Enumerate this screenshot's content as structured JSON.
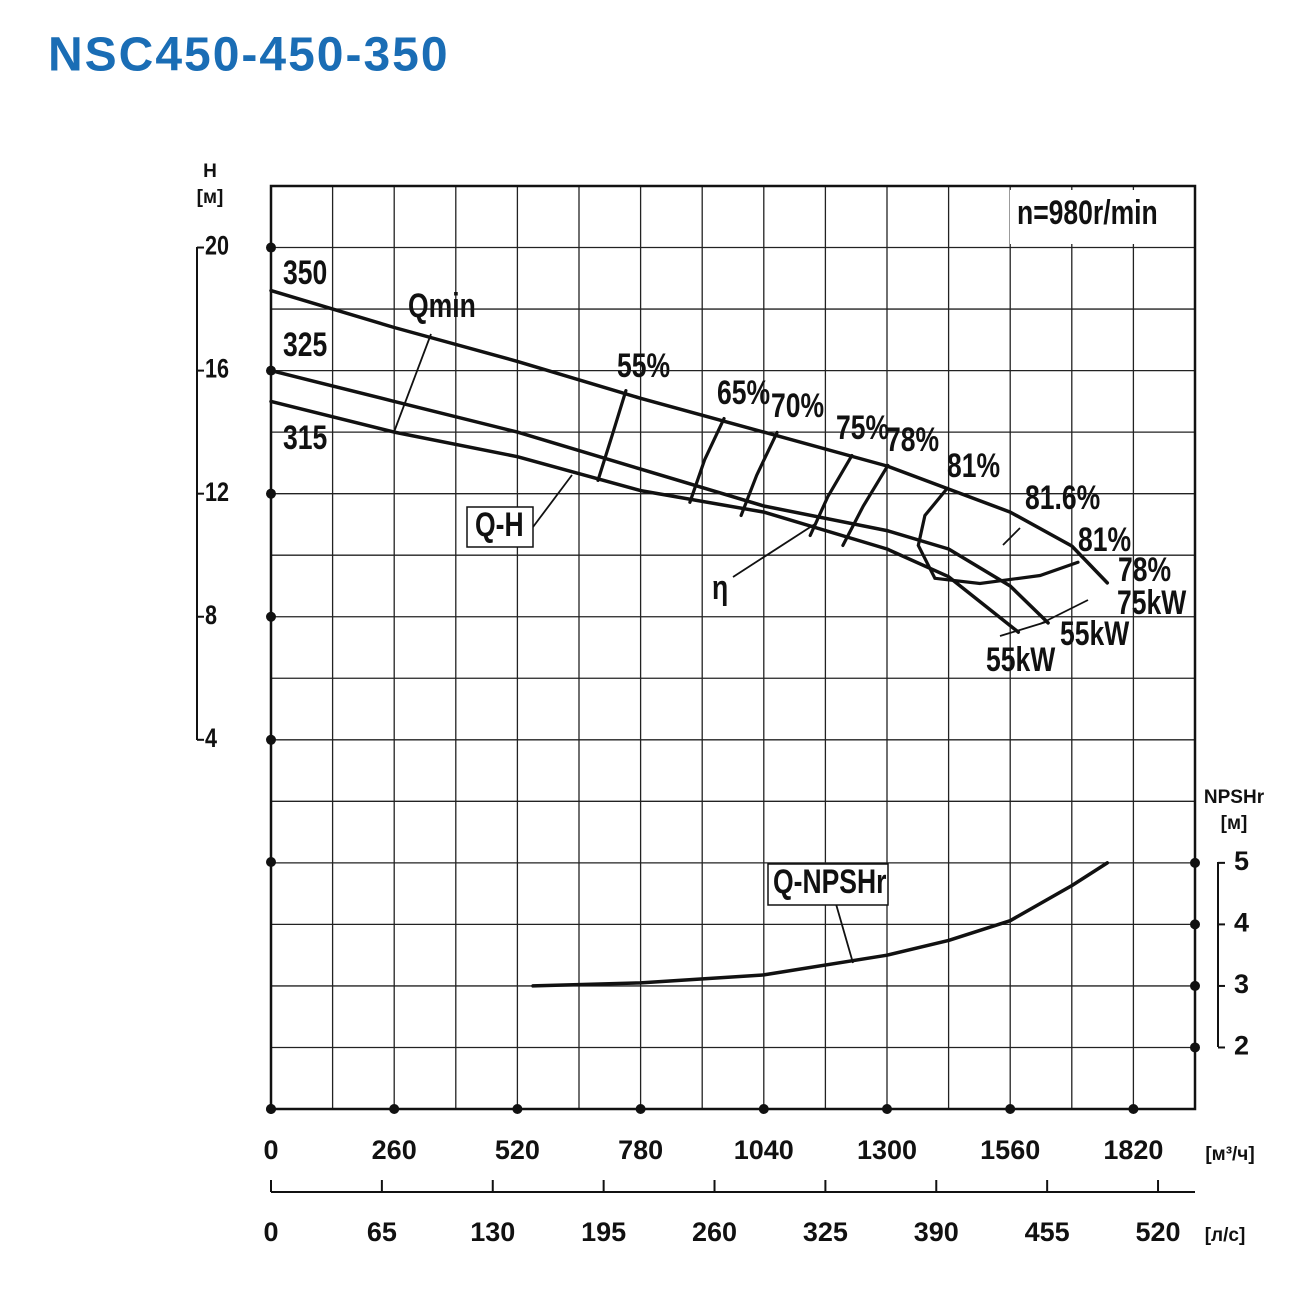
{
  "chart_data": {
    "type": "line",
    "title": "NSC450-450-350",
    "y_label": "H",
    "y_unit": "[м]",
    "y2_label": "NPSHr",
    "y2_unit": "[м]",
    "x_unit": "[м³/ч]",
    "x2_unit": "[л/с]",
    "xlim": [
      0,
      1950
    ],
    "xticks": [
      0,
      260,
      520,
      780,
      1040,
      1300,
      1560,
      1820
    ],
    "x2lim": [
      0,
      541.67
    ],
    "x2ticks": [
      0,
      65,
      130,
      195,
      260,
      325,
      390,
      455,
      520
    ],
    "ylim": [
      -8,
      22
    ],
    "yticks": [
      4,
      8,
      12,
      16,
      20
    ],
    "y2lim": [
      1,
      16
    ],
    "y2ticks": [
      2,
      3,
      4,
      5
    ],
    "series": [
      {
        "name": "350",
        "x": [
          0,
          260,
          520,
          780,
          1040,
          1300,
          1560,
          1690,
          1765
        ],
        "values": [
          18.6,
          17.4,
          16.3,
          15.1,
          14.0,
          12.9,
          11.4,
          10.3,
          9.1
        ]
      },
      {
        "name": "325",
        "x": [
          0,
          260,
          520,
          780,
          1040,
          1300,
          1430,
          1560,
          1640
        ],
        "values": [
          16.0,
          15.0,
          14.0,
          12.8,
          11.6,
          10.8,
          10.2,
          9.0,
          7.8
        ]
      },
      {
        "name": "315",
        "x": [
          0,
          260,
          520,
          780,
          1040,
          1300,
          1430,
          1577
        ],
        "values": [
          15.0,
          14.0,
          13.2,
          12.1,
          11.4,
          10.2,
          9.3,
          7.5
        ]
      },
      {
        "name": "Q-NPSHr",
        "axis": "y2",
        "x": [
          553,
          780,
          1040,
          1300,
          1430,
          1560,
          1690,
          1765
        ],
        "values": [
          3.0,
          3.05,
          3.18,
          3.5,
          3.74,
          4.06,
          4.63,
          5.0
        ]
      }
    ],
    "efficiency_curves": [
      {
        "label": "55%",
        "x": [
          749,
          720,
          690
        ],
        "values": [
          15.35,
          13.9,
          12.43
        ]
      },
      {
        "label": "65%",
        "x": [
          956,
          915,
          884
        ],
        "values": [
          14.44,
          13.1,
          11.72
        ]
      },
      {
        "label": "70%",
        "x": [
          1068,
          1025,
          992
        ],
        "values": [
          13.99,
          12.6,
          11.29
        ]
      },
      {
        "label": "75%",
        "x": [
          1226,
          1175,
          1138
        ],
        "values": [
          13.24,
          11.9,
          10.64
        ]
      },
      {
        "label": "78%",
        "x": [
          1302,
          1250,
          1207
        ],
        "values": [
          12.92,
          11.6,
          10.32
        ]
      },
      {
        "label": "81%",
        "x": [
          1427,
          1380,
          1366,
          1401,
          1496,
          1623,
          1703
        ],
        "values": [
          12.17,
          11.29,
          10.32,
          9.25,
          9.08,
          9.34,
          9.77
        ]
      }
    ],
    "annotations": [
      "n=980r/min",
      "Qmin",
      "Q-H",
      "η",
      "81.6%",
      "81%",
      "78%",
      "75kW",
      "55kW",
      "55kW"
    ]
  }
}
